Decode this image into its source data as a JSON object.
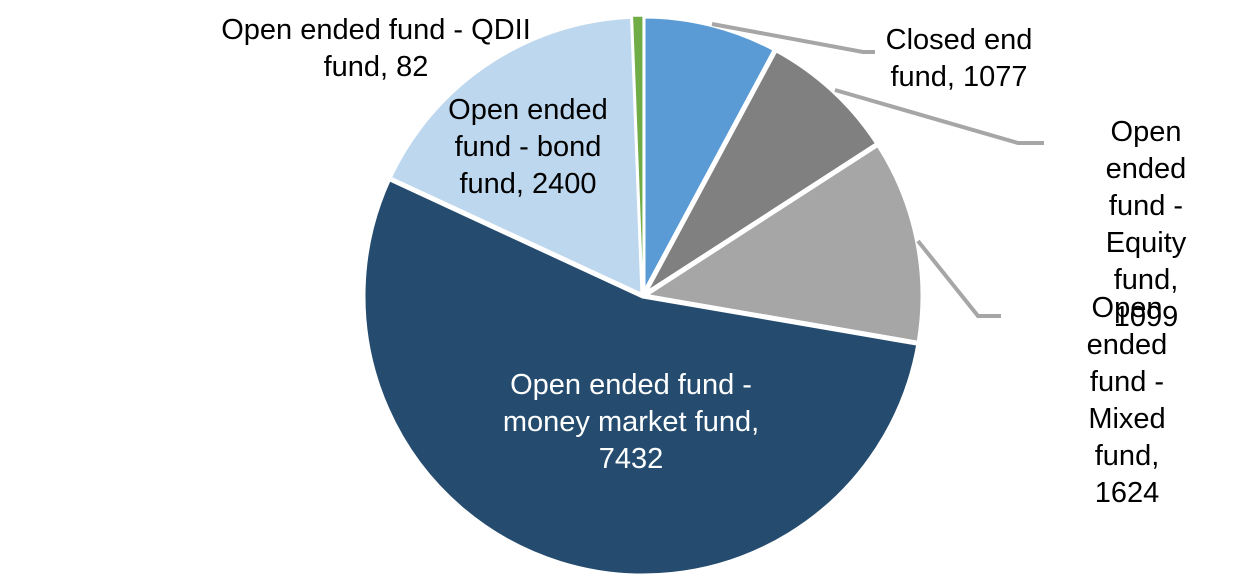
{
  "chart_data": {
    "type": "pie",
    "title": "",
    "categories": [
      "Closed end fund",
      "Open ended fund - Equity fund",
      "Open ended fund - Mixed fund",
      "Open ended fund - money market fund",
      "Open ended fund - bond fund",
      "Open ended fund - QDII fund"
    ],
    "values": [
      1077,
      1099,
      1624,
      7432,
      2400,
      82
    ],
    "colors": [
      "#5B9BD5",
      "#808080",
      "#A6A6A6",
      "#254C6F",
      "#BDD7EE",
      "#70AD47"
    ],
    "slice_ids": [
      "closed-end-fund",
      "equity-fund",
      "mixed-fund",
      "money-market-fund",
      "bond-fund",
      "qdii-fund"
    ],
    "start_angle_deg": 0,
    "direction": "clockwise",
    "legend_position": "none",
    "data_labels": "category name and value",
    "background": "#FFFFFF"
  },
  "labels": {
    "qdii": "Open ended fund - QDII\nfund, 82",
    "bond": "Open ended\nfund - bond\nfund, 2400",
    "money_market": "Open ended fund -\nmoney market fund,\n7432",
    "closed_end": "Closed end\nfund, 1077",
    "equity": "Open ended\nfund - Equity\nfund, 1099",
    "mixed": "Open ended\nfund - Mixed\nfund, 1624"
  },
  "styles": {
    "slice_border_color": "#FFFFFF",
    "leader_line_color": "#A6A6A6",
    "outside_label_color": "#000000",
    "inside_label_color": "#FFFFFF"
  }
}
